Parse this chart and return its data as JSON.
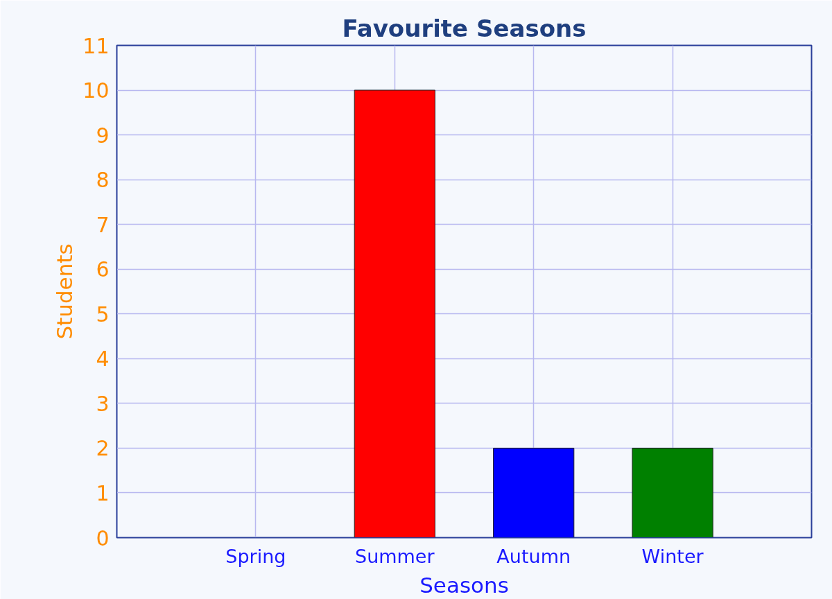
{
  "chart_data": {
    "type": "bar",
    "title": "Favourite Seasons",
    "xlabel": "Seasons",
    "ylabel": "Students",
    "categories": [
      "Spring",
      "Summer",
      "Autumn",
      "Winter"
    ],
    "values": [
      0,
      10,
      2,
      2
    ],
    "colors": [
      null,
      "#ff0000",
      "#0000ff",
      "#008000"
    ],
    "ylim": [
      0,
      11
    ],
    "yticks": [
      0,
      1,
      2,
      3,
      4,
      5,
      6,
      7,
      8,
      9,
      10,
      11
    ],
    "grid": true
  }
}
